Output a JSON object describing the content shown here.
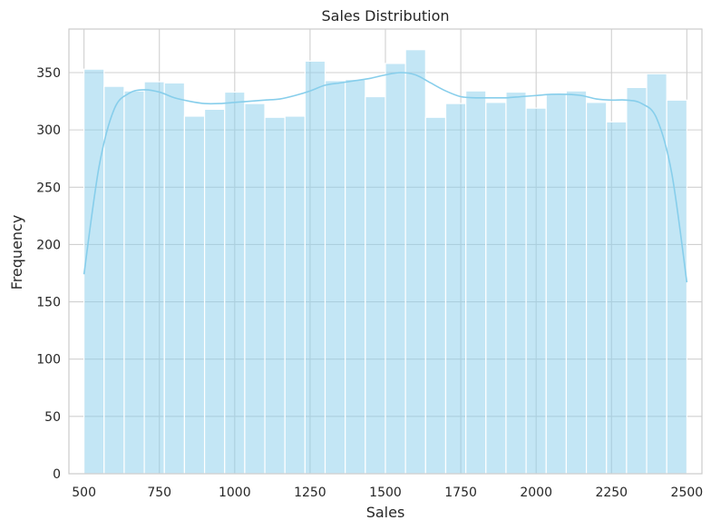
{
  "chart_data": {
    "type": "bar",
    "title": "Sales Distribution",
    "xlabel": "Sales",
    "ylabel": "Frequency",
    "xlim": [
      450,
      2550
    ],
    "ylim": [
      0,
      388
    ],
    "xticks": [
      500,
      750,
      1000,
      1250,
      1500,
      1750,
      2000,
      2250,
      2500
    ],
    "yticks": [
      0,
      50,
      100,
      150,
      200,
      250,
      300,
      350
    ],
    "grid": true,
    "bins": {
      "start": 500,
      "end": 2500,
      "count": 30,
      "values": [
        353,
        338,
        334,
        342,
        341,
        312,
        318,
        333,
        323,
        311,
        312,
        360,
        343,
        344,
        329,
        358,
        370,
        311,
        323,
        334,
        324,
        333,
        319,
        331,
        334,
        324,
        307,
        337,
        349,
        326
      ]
    },
    "kde": {
      "x": [
        500,
        550,
        600,
        650,
        700,
        750,
        800,
        850,
        900,
        950,
        1000,
        1050,
        1100,
        1150,
        1200,
        1250,
        1300,
        1350,
        1400,
        1450,
        1500,
        1550,
        1600,
        1650,
        1700,
        1750,
        1800,
        1850,
        1900,
        1950,
        2000,
        2050,
        2100,
        2150,
        2200,
        2250,
        2300,
        2350,
        2400,
        2450,
        2500
      ],
      "y": [
        174,
        268,
        318,
        332,
        335,
        333,
        328,
        325,
        323,
        323,
        324,
        325,
        326,
        327,
        330,
        334,
        339,
        341,
        343,
        345,
        348,
        350,
        348,
        341,
        334,
        329,
        328,
        328,
        328,
        329,
        330,
        331,
        331,
        330,
        327,
        326,
        326,
        323,
        310,
        262,
        167
      ]
    },
    "colors": {
      "bar_fill": "#87ceeb",
      "bar_opacity": 0.5,
      "bar_edge": "#ffffff",
      "kde_line": "#87ceeb",
      "grid": "#d0d0d0",
      "axes_edge": "#cccccc",
      "text": "#262626"
    }
  }
}
